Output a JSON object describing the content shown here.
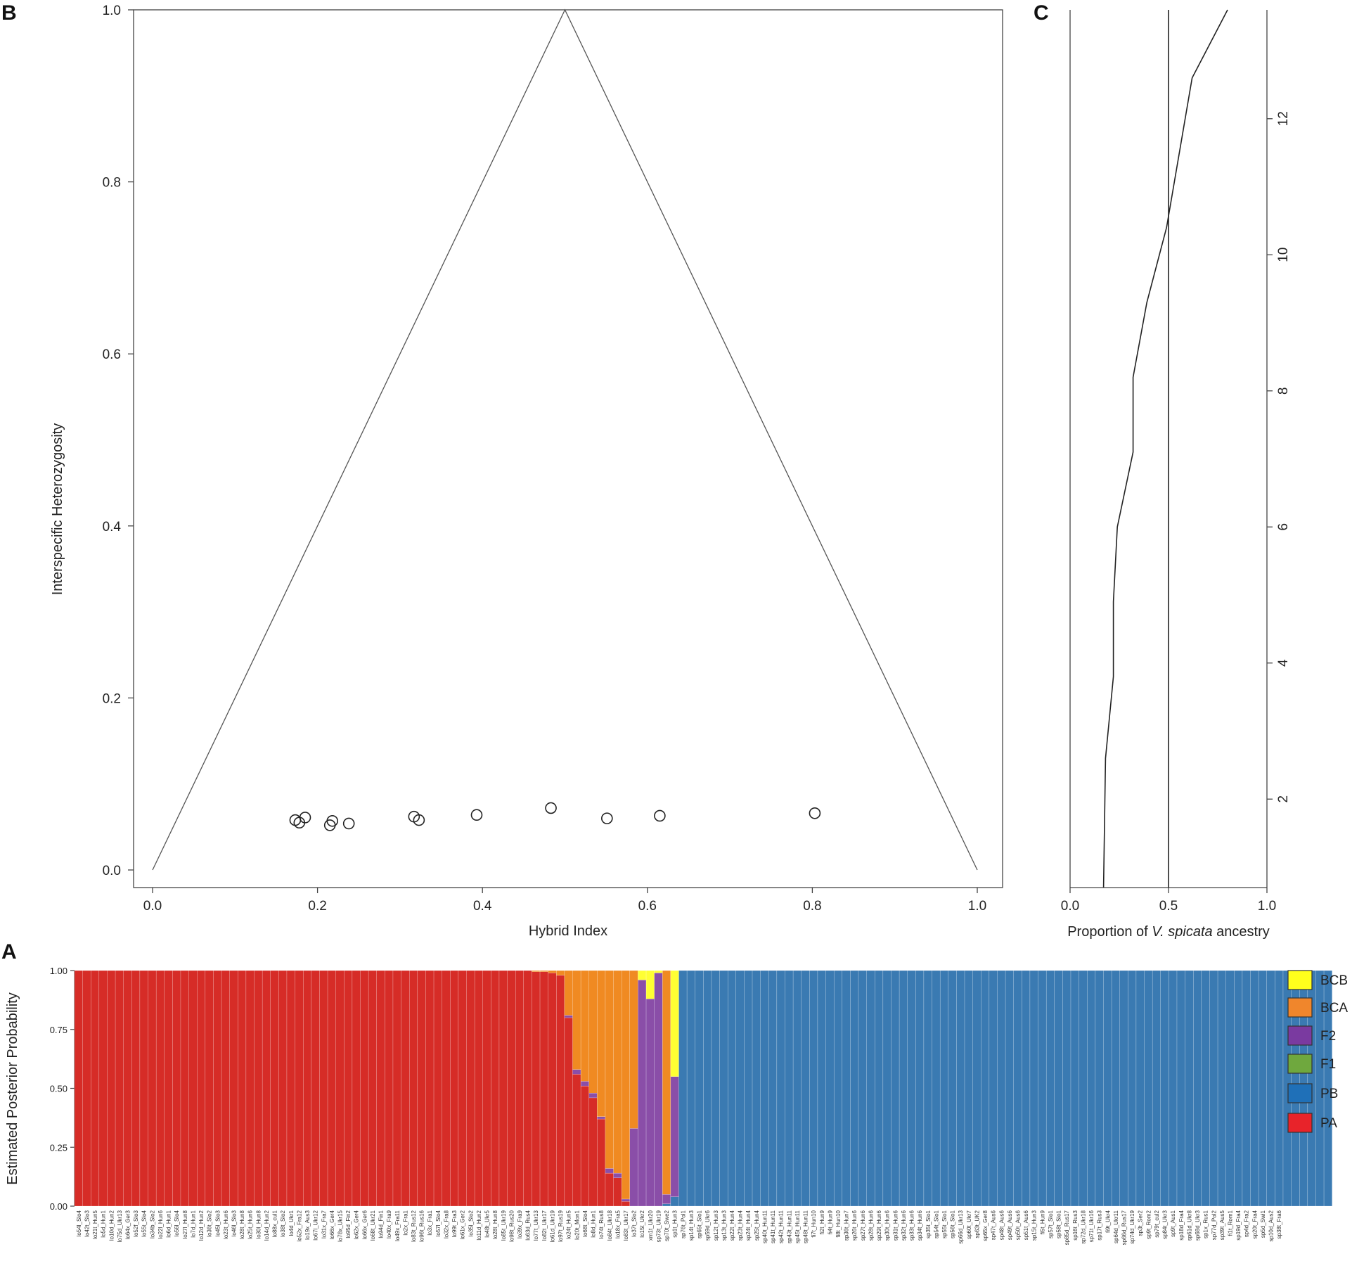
{
  "panel_letters": {
    "a": "A",
    "b": "B",
    "c": "C"
  },
  "chart_data": [
    {
      "panel": "B",
      "type": "scatter",
      "xlabel": "Hybrid Index",
      "ylabel": "Interspecific Heterozygosity",
      "xlim": [
        0.0,
        1.0
      ],
      "ylim": [
        0.0,
        1.0
      ],
      "xticks": [
        "0.0",
        "0.2",
        "0.4",
        "0.6",
        "0.8",
        "1.0"
      ],
      "yticks": [
        "0.0",
        "0.2",
        "0.4",
        "0.6",
        "0.8",
        "1.0"
      ],
      "grid": false,
      "triangle": [
        [
          0.0,
          0.0
        ],
        [
          0.5,
          1.0
        ],
        [
          1.0,
          0.0
        ]
      ],
      "points": [
        {
          "x": 0.173,
          "y": 0.058
        },
        {
          "x": 0.178,
          "y": 0.055
        },
        {
          "x": 0.185,
          "y": 0.061
        },
        {
          "x": 0.215,
          "y": 0.052
        },
        {
          "x": 0.218,
          "y": 0.057
        },
        {
          "x": 0.238,
          "y": 0.054
        },
        {
          "x": 0.317,
          "y": 0.062
        },
        {
          "x": 0.323,
          "y": 0.058
        },
        {
          "x": 0.393,
          "y": 0.064
        },
        {
          "x": 0.483,
          "y": 0.072
        },
        {
          "x": 0.551,
          "y": 0.06
        },
        {
          "x": 0.615,
          "y": 0.063
        },
        {
          "x": 0.803,
          "y": 0.066
        }
      ]
    },
    {
      "panel": "C",
      "type": "line",
      "xlabel_prefix": "Proportion of ",
      "xlabel_italic": "V. spicata",
      "xlabel_suffix": " ancestry",
      "xlim": [
        0.0,
        1.0
      ],
      "ylim": [
        0.7,
        13.6
      ],
      "xticks": [
        "0.0",
        "0.5",
        "1.0"
      ],
      "yticks": [
        "2",
        "4",
        "6",
        "8",
        "10",
        "12"
      ],
      "reference_line_x": 0.5,
      "series": [
        {
          "points": [
            {
              "x": 0.17,
              "y": 0.7
            },
            {
              "x": 0.18,
              "y": 2.6
            },
            {
              "x": 0.22,
              "y": 3.8
            },
            {
              "x": 0.22,
              "y": 4.9
            },
            {
              "x": 0.24,
              "y": 6.0
            },
            {
              "x": 0.32,
              "y": 7.1
            },
            {
              "x": 0.32,
              "y": 8.2
            },
            {
              "x": 0.39,
              "y": 9.3
            },
            {
              "x": 0.49,
              "y": 10.4
            },
            {
              "x": 0.62,
              "y": 12.6
            },
            {
              "x": 0.8,
              "y": 13.6
            }
          ]
        }
      ]
    },
    {
      "panel": "A",
      "type": "bar",
      "stacked": true,
      "ylabel": "Estimated Posterior Probability",
      "ylim": [
        0.0,
        1.0
      ],
      "yticks": [
        "0.00",
        "0.25",
        "0.50",
        "0.75",
        "1.00"
      ],
      "legend": [
        {
          "label": "BCB",
          "color": "#ffff1c"
        },
        {
          "label": "BCA",
          "color": "#f0862c"
        },
        {
          "label": "F2",
          "color": "#7a3aa0"
        },
        {
          "label": "F1",
          "color": "#6fa83e"
        },
        {
          "label": "PB",
          "color": "#1f70b8"
        },
        {
          "label": "PA",
          "color": "#e8232a"
        }
      ],
      "legend_position": "right",
      "class_order": [
        "PA",
        "PB",
        "F1",
        "F2",
        "BCA",
        "BCB"
      ],
      "bar_colors": {
        "PA": "#d62c27",
        "PB": "#3a7ab2",
        "F1": "#6fa83e",
        "F2": "#8a4ea8",
        "BCA": "#f08a22",
        "BCB": "#ffff33"
      },
      "categories": [
        "lo54l_Slo4",
        "lo42t_Slo3",
        "lo21t_Hun5",
        "lo5d_Hun1",
        "lo10d_Hun2",
        "lo75d_Ukr13",
        "lo64x_Ger3",
        "lo52f_Slo3",
        "lo55t_Slo4",
        "lo34b_Slo2",
        "lo22l_Hun6",
        "lo6d_Hun1",
        "lo56l_Slo4",
        "lo27l_Hun8",
        "lo7d_Hun1",
        "lo12d_Hun2",
        "lo36t_Slo2",
        "lo45l_Slo3",
        "lo23t_Hun6",
        "lo46l_Slo3",
        "lo28t_Hun8",
        "lo25t_Hun6",
        "lo30l_Hun8",
        "lo14d_Hun2",
        "lo88x_cul1",
        "lo38t_Slo2",
        "lo4d_Ukr1",
        "lo52x_Fra12",
        "lo19x_Aus3",
        "lo67l_Ukr12",
        "lo31x_Fra7",
        "lo66x_Ger4",
        "lo78x_Ukr15",
        "lo95d_Fin2",
        "lo62x_Ger4",
        "lo66x_Ger6",
        "lo68t_Ukr21",
        "lo94d_Fin1",
        "lo40x_Fra9",
        "lo49x_Fra11",
        "lo2x_Fra1",
        "lo83t_Rus12",
        "lo96t_Rus16",
        "lo3x_Fra1",
        "lo57l_Slo4",
        "lo32x_Fra8",
        "lo99t_Fra3",
        "lo61x_Ger2",
        "lo35l_Slo2",
        "lo11d_Hun2",
        "lo48t_Ukr5",
        "lo28t_Hun8",
        "lo85t_Ukr19",
        "lo98t_Rus20",
        "lo39x_Fra9",
        "lo63d_Rus4",
        "lo77t_Ukr13",
        "lo82t_Ukr17",
        "lo61d_Ukr19",
        "lo97t_Rus19",
        "lo24t_Hun5",
        "lo20t_Mon1",
        "lo68t_Slo4",
        "lo8d_Hun1",
        "lo74t_Rus8",
        "lo84t_Ukr18",
        "lo18x_Fra5",
        "lo83t_Ukr17",
        "lo37t_Slo2",
        "lo15t_Ukr2",
        "xm1t_Ukr20",
        "sp73t_Ukr19",
        "sp70t_Swe2",
        "sp1t_Hun3",
        "sp76t_Pol1",
        "sp14t_Hun3",
        "sp65t_Slo1",
        "sp59d_Ukr6",
        "sp12t_Hun3",
        "sp13t_Hun3",
        "sp22t_Hun4",
        "sp23t_Hun4",
        "sp24t_Hun4",
        "sp25t_Hun4",
        "sp40t_Hun11",
        "sp41t_Hun11",
        "sp42t_Hun11",
        "sp43t_Hun11",
        "sp45t_Hun11",
        "sp48t_Hun11",
        "fi7t_Hun10",
        "fi2t_Hun9",
        "fi4t_Hun9",
        "fi8t_Hun10",
        "sp36t_Hun7",
        "sp26t_Hun6",
        "sp27t_Hun6",
        "sp28t_Hun6",
        "sp29t_Hun6",
        "sp30t_Hun6",
        "sp31t_Hun6",
        "sp32t_Hun6",
        "sp33t_Hun6",
        "sp34t_Hun6",
        "sp35t_Slo1",
        "sp54t_Slo1",
        "sp55t_Slo1",
        "sp56t_Slo1",
        "sp66d_Ukr13",
        "sp60t_Ukr7",
        "sp63t_UK2",
        "sp65x_Ger8",
        "sp47t_Aus6",
        "sp48t_Aus6",
        "sp49t_Aus6",
        "sp50t_Aus6",
        "sp51t_Aus6",
        "sp15t_Hun3",
        "fi5t_Hun9",
        "sp57t_Slo1",
        "sp58t_Slo1",
        "sp85d_Rus17",
        "sp16t_Rus3",
        "sp72d_Ukr18",
        "sp71t_Ukr16",
        "sp17t_Rus3",
        "fi9t_Ukr4",
        "sp64d_Ukr11",
        "sp66d_Rus17",
        "sp74d_Ukr19",
        "sp3t_Ser2",
        "sp9t_Rom2",
        "sp79t_cul2",
        "sp84t_Ukr3",
        "sp9t_Aus1",
        "sp18d_Fra4",
        "sp61d_Ukr8",
        "sp68d_Ukr3",
        "sp1x_Rus1",
        "sp77d_Pol2",
        "sp39t_Aus5",
        "fi1t_Rom1",
        "sp19d_Fra4",
        "sp4d_Fra2",
        "sp20t_Fra4",
        "sp5d_Swi1",
        "sp10d_Aus2",
        "sp38t_Fra6"
      ],
      "probabilities": [
        {
          "PA": 1.0
        },
        {
          "PA": 1.0
        },
        {
          "PA": 1.0
        },
        {
          "PA": 1.0
        },
        {
          "PA": 1.0
        },
        {
          "PA": 1.0
        },
        {
          "PA": 1.0
        },
        {
          "PA": 1.0
        },
        {
          "PA": 1.0
        },
        {
          "PA": 1.0
        },
        {
          "PA": 1.0
        },
        {
          "PA": 1.0
        },
        {
          "PA": 1.0
        },
        {
          "PA": 1.0
        },
        {
          "PA": 1.0
        },
        {
          "PA": 1.0
        },
        {
          "PA": 1.0
        },
        {
          "PA": 1.0
        },
        {
          "PA": 1.0
        },
        {
          "PA": 1.0
        },
        {
          "PA": 1.0
        },
        {
          "PA": 1.0
        },
        {
          "PA": 1.0
        },
        {
          "PA": 1.0
        },
        {
          "PA": 1.0
        },
        {
          "PA": 1.0
        },
        {
          "PA": 1.0
        },
        {
          "PA": 1.0
        },
        {
          "PA": 1.0
        },
        {
          "PA": 1.0
        },
        {
          "PA": 1.0
        },
        {
          "PA": 1.0
        },
        {
          "PA": 1.0
        },
        {
          "PA": 1.0
        },
        {
          "PA": 1.0
        },
        {
          "PA": 1.0
        },
        {
          "PA": 1.0
        },
        {
          "PA": 1.0
        },
        {
          "PA": 1.0
        },
        {
          "PA": 1.0
        },
        {
          "PA": 1.0
        },
        {
          "PA": 1.0
        },
        {
          "PA": 1.0
        },
        {
          "PA": 1.0
        },
        {
          "PA": 1.0
        },
        {
          "PA": 1.0
        },
        {
          "PA": 1.0
        },
        {
          "PA": 1.0
        },
        {
          "PA": 1.0
        },
        {
          "PA": 1.0
        },
        {
          "PA": 1.0
        },
        {
          "PA": 1.0
        },
        {
          "PA": 1.0
        },
        {
          "PA": 1.0
        },
        {
          "PA": 1.0
        },
        {
          "PA": 1.0
        },
        {
          "PA": 0.995,
          "BCA": 0.005
        },
        {
          "PA": 0.995,
          "BCA": 0.005
        },
        {
          "PA": 0.99,
          "BCA": 0.01
        },
        {
          "PA": 0.98,
          "BCA": 0.02
        },
        {
          "PA": 0.8,
          "F2": 0.01,
          "BCA": 0.19
        },
        {
          "PA": 0.56,
          "F2": 0.02,
          "BCA": 0.42
        },
        {
          "PA": 0.51,
          "F2": 0.02,
          "BCA": 0.47
        },
        {
          "PA": 0.46,
          "F2": 0.02,
          "BCA": 0.52
        },
        {
          "PA": 0.37,
          "F2": 0.01,
          "BCA": 0.62
        },
        {
          "PA": 0.14,
          "F2": 0.02,
          "BCA": 0.84
        },
        {
          "PA": 0.12,
          "F2": 0.02,
          "BCA": 0.86
        },
        {
          "PA": 0.02,
          "F2": 0.01,
          "BCA": 0.97
        },
        {
          "F2": 0.33,
          "BCA": 0.67
        },
        {
          "F2": 0.96,
          "BCA": 0.0,
          "BCB": 0.04
        },
        {
          "F2": 0.88,
          "BCB": 0.12
        },
        {
          "F2": 0.99,
          "BCB": 0.01
        },
        {
          "PB": 0.01,
          "F2": 0.04,
          "BCA": 0.95
        },
        {
          "PB": 0.04,
          "F2": 0.51,
          "BCB": 0.45
        },
        {
          "PB": 1.0
        },
        {
          "PB": 1.0
        },
        {
          "PB": 1.0
        },
        {
          "PB": 1.0
        },
        {
          "PB": 1.0
        },
        {
          "PB": 1.0
        },
        {
          "PB": 1.0
        },
        {
          "PB": 1.0
        },
        {
          "PB": 1.0
        },
        {
          "PB": 1.0
        },
        {
          "PB": 1.0
        },
        {
          "PB": 1.0
        },
        {
          "PB": 1.0
        },
        {
          "PB": 1.0
        },
        {
          "PB": 1.0
        },
        {
          "PB": 1.0
        },
        {
          "PB": 1.0
        },
        {
          "PB": 1.0
        },
        {
          "PB": 1.0
        },
        {
          "PB": 1.0
        },
        {
          "PB": 1.0
        },
        {
          "PB": 1.0
        },
        {
          "PB": 1.0
        },
        {
          "PB": 1.0
        },
        {
          "PB": 1.0
        },
        {
          "PB": 1.0
        },
        {
          "PB": 1.0
        },
        {
          "PB": 1.0
        },
        {
          "PB": 1.0
        },
        {
          "PB": 1.0
        },
        {
          "PB": 1.0
        },
        {
          "PB": 1.0
        },
        {
          "PB": 1.0
        },
        {
          "PB": 1.0
        },
        {
          "PB": 1.0
        },
        {
          "PB": 1.0
        },
        {
          "PB": 1.0
        },
        {
          "PB": 1.0
        },
        {
          "PB": 1.0
        },
        {
          "PB": 1.0
        },
        {
          "PB": 1.0
        },
        {
          "PB": 1.0
        },
        {
          "PB": 1.0
        },
        {
          "PB": 1.0
        },
        {
          "PB": 1.0
        },
        {
          "PB": 1.0
        },
        {
          "PB": 1.0
        },
        {
          "PB": 1.0
        },
        {
          "PB": 1.0
        },
        {
          "PB": 1.0
        },
        {
          "PB": 1.0
        },
        {
          "PB": 1.0
        },
        {
          "PB": 1.0
        },
        {
          "PB": 1.0
        },
        {
          "PB": 1.0
        },
        {
          "PB": 1.0
        },
        {
          "PB": 1.0
        },
        {
          "PB": 1.0
        },
        {
          "PB": 1.0
        },
        {
          "PB": 1.0
        },
        {
          "PB": 1.0
        },
        {
          "PB": 1.0
        },
        {
          "PB": 1.0
        },
        {
          "PB": 1.0
        },
        {
          "PB": 1.0
        },
        {
          "PB": 1.0
        },
        {
          "PB": 1.0
        },
        {
          "PB": 1.0
        },
        {
          "PB": 1.0
        },
        {
          "PB": 1.0
        },
        {
          "PB": 1.0
        },
        {
          "PB": 1.0
        },
        {
          "PB": 1.0
        },
        {
          "PB": 1.0
        },
        {
          "PB": 1.0
        },
        {
          "PB": 1.0
        },
        {
          "PB": 1.0
        },
        {
          "PB": 1.0
        },
        {
          "PB": 1.0
        },
        {
          "PB": 1.0
        }
      ]
    }
  ]
}
